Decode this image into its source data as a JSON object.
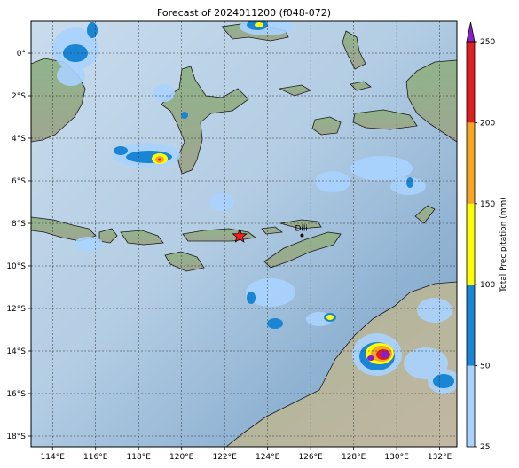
{
  "title": "Forecast of 2024011200 (f048-072)",
  "map": {
    "lon_range": [
      113.0,
      132.8
    ],
    "lat_range": [
      -18.5,
      1.5
    ],
    "lon_ticks": [
      "114°E",
      "116°E",
      "118°E",
      "120°E",
      "122°E",
      "124°E",
      "126°E",
      "128°E",
      "130°E",
      "132°E"
    ],
    "lat_ticks": [
      "0°",
      "2°S",
      "4°S",
      "6°S",
      "8°S",
      "10°S",
      "12°S",
      "14°S",
      "16°S",
      "18°S"
    ],
    "lon_tick_values": [
      114,
      116,
      118,
      120,
      122,
      124,
      126,
      128,
      130,
      132
    ],
    "lat_tick_values": [
      0,
      -2,
      -4,
      -6,
      -8,
      -10,
      -12,
      -14,
      -16,
      -18
    ],
    "gridlines": true,
    "marker": {
      "symbol": "red-star",
      "lon": 122.7,
      "lat": -8.6
    },
    "city": {
      "label": "Dili",
      "lon": 125.6,
      "lat": -8.56
    }
  },
  "colorbar": {
    "label": "Total Precipitation (mm)",
    "ticks": [
      "25",
      "50",
      "100",
      "150",
      "200",
      "250"
    ],
    "levels": [
      25,
      50,
      100,
      150,
      200,
      250
    ],
    "colors": [
      "#a9d3ff",
      "#1a85d4",
      "#ffff00",
      "#f5a623",
      "#e02020",
      "#8a1ec9"
    ],
    "extend": "max"
  }
}
